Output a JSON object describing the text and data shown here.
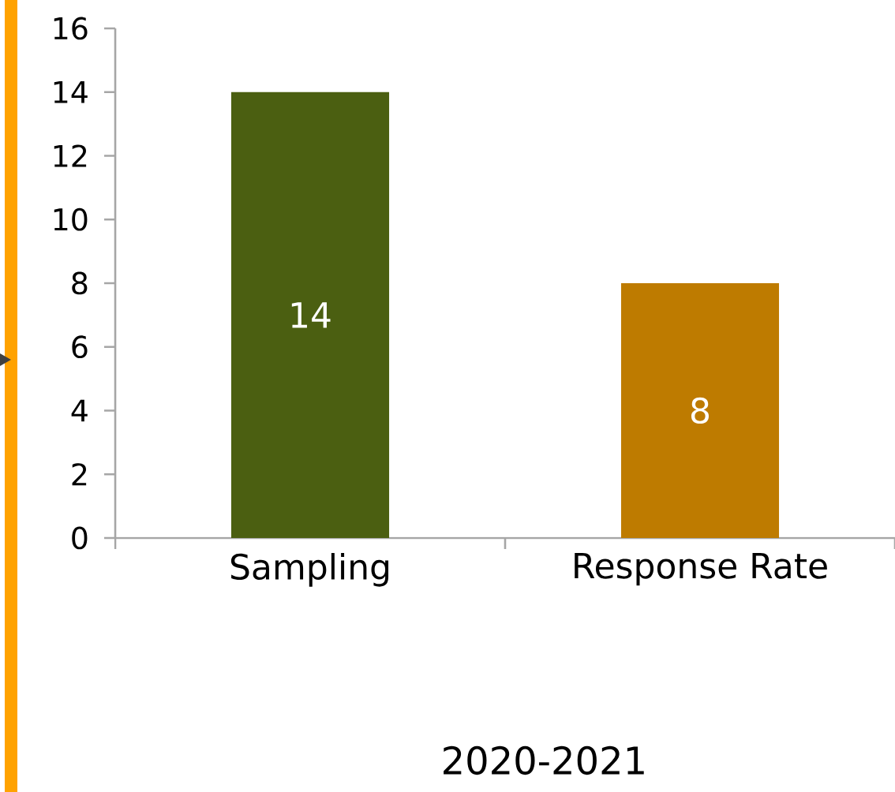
{
  "chart_data": {
    "type": "bar",
    "categories": [
      "Sampling",
      "Response Rate"
    ],
    "values": [
      14,
      8
    ],
    "colors": [
      "#4b5f11",
      "#be7b00"
    ],
    "ylim": [
      0,
      16
    ],
    "yticks": [
      0,
      2,
      4,
      6,
      8,
      10,
      12,
      14,
      16
    ],
    "xlabel": "2020-2021",
    "data_labels": true
  }
}
